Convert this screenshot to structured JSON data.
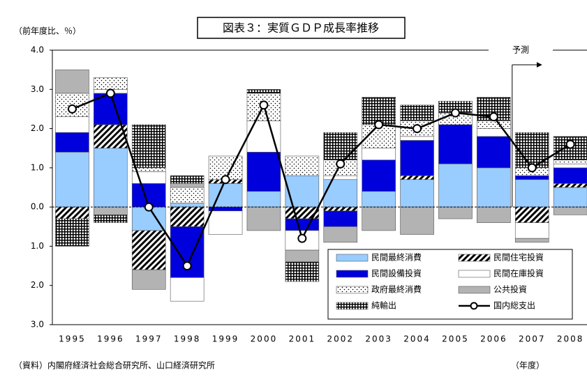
{
  "chart_data": {
    "type": "bar",
    "stacked": true,
    "title": "図表３：実質ＧＤＰ成長率推移",
    "y_label": "（前年度比、％）",
    "x_label": "（年度）",
    "source": "（資料）内閣府経済社会総合研究所、山口経済研究所",
    "annotation": "予測",
    "forecast_from": "2007",
    "categories": [
      "1995",
      "1996",
      "1997",
      "1998",
      "1999",
      "2000",
      "2001",
      "2002",
      "2003",
      "2004",
      "2005",
      "2006",
      "2007",
      "2008"
    ],
    "ylim": [
      -3,
      4
    ],
    "yticks": [
      {
        "value": -3,
        "label": "3.0"
      },
      {
        "value": -2,
        "label": "2.0"
      },
      {
        "value": -1,
        "label": "1.0"
      },
      {
        "value": 0,
        "label": "0.0"
      },
      {
        "value": 1,
        "label": "1.0"
      },
      {
        "value": 2,
        "label": "2.0"
      },
      {
        "value": 3,
        "label": "3.0"
      },
      {
        "value": 4,
        "label": "4.0"
      }
    ],
    "series": [
      {
        "name": "民間最終消費",
        "color": "#99ccff",
        "pattern": "solid",
        "values": [
          1.4,
          1.5,
          -0.6,
          0.1,
          0.6,
          0.4,
          0.8,
          0.7,
          0.4,
          0.7,
          1.1,
          1.0,
          0.7,
          0.5
        ]
      },
      {
        "name": "民間住宅投資",
        "color": "#000000",
        "pattern": "hatch",
        "values": [
          -0.3,
          0.6,
          -1.0,
          -0.5,
          0.1,
          0,
          -0.3,
          -0.1,
          0,
          0.1,
          0,
          0,
          -0.4,
          0.1
        ]
      },
      {
        "name": "民間設備投資",
        "color": "#0000dd",
        "pattern": "solid",
        "values": [
          0.5,
          0.8,
          0.6,
          -1.3,
          -0.1,
          1.0,
          -0.3,
          -0.4,
          0.8,
          0.9,
          1.0,
          0.8,
          0.1,
          0.4
        ]
      },
      {
        "name": "民間在庫投資",
        "color": "#ffffff",
        "pattern": "solid",
        "values": [
          0.4,
          0.1,
          0.3,
          -0.6,
          -0.6,
          0.8,
          -0.5,
          0.1,
          0.3,
          0.1,
          0,
          0.2,
          -0.4,
          0.1
        ]
      },
      {
        "name": "政府最終消費",
        "color": "#000000",
        "pattern": "dots",
        "values": [
          0.6,
          0.3,
          0.1,
          0.4,
          0.6,
          0.7,
          0.5,
          0.4,
          0.6,
          0.4,
          0.3,
          0.2,
          0.2,
          0.1
        ]
      },
      {
        "name": "公共投資",
        "color": "#b3b3b3",
        "pattern": "solid",
        "values": [
          0.6,
          -0.2,
          -0.5,
          0.1,
          0,
          -0.6,
          -0.3,
          -0.4,
          -0.6,
          -0.7,
          -0.3,
          -0.4,
          -0.1,
          -0.2
        ]
      },
      {
        "name": "純輸出",
        "color": "#000000",
        "pattern": "grid",
        "values": [
          -0.7,
          -0.2,
          1.1,
          0.2,
          0,
          0.1,
          -0.5,
          0.7,
          0.7,
          0.4,
          0.3,
          0.6,
          0.9,
          0.6
        ]
      },
      {
        "name": "国内総支出",
        "color": "#000000",
        "kind": "line",
        "values": [
          2.5,
          2.9,
          0.0,
          -1.5,
          0.7,
          2.6,
          -0.8,
          1.1,
          2.1,
          2.0,
          2.4,
          2.3,
          1.0,
          1.6
        ]
      }
    ]
  }
}
